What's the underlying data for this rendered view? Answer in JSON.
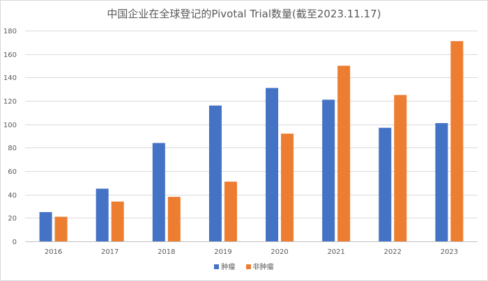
{
  "chart_data": {
    "type": "bar",
    "title": "中国企业在全球登记的Pivotal Trial数量(截至2023.11.17)",
    "categories": [
      "2016",
      "2017",
      "2018",
      "2019",
      "2020",
      "2021",
      "2022",
      "2023"
    ],
    "series": [
      {
        "name": "肿瘤",
        "color": "#4472C4",
        "values": [
          25,
          45,
          84,
          116,
          131,
          121,
          97,
          101
        ]
      },
      {
        "name": "非肿瘤",
        "color": "#ED7D31",
        "values": [
          21,
          34,
          38,
          51,
          92,
          150,
          125,
          171
        ]
      }
    ],
    "ylim": [
      0,
      180
    ],
    "yticks": [
      0,
      20,
      40,
      60,
      80,
      100,
      120,
      140,
      160,
      180
    ],
    "grid": true,
    "legend_position": "bottom"
  }
}
